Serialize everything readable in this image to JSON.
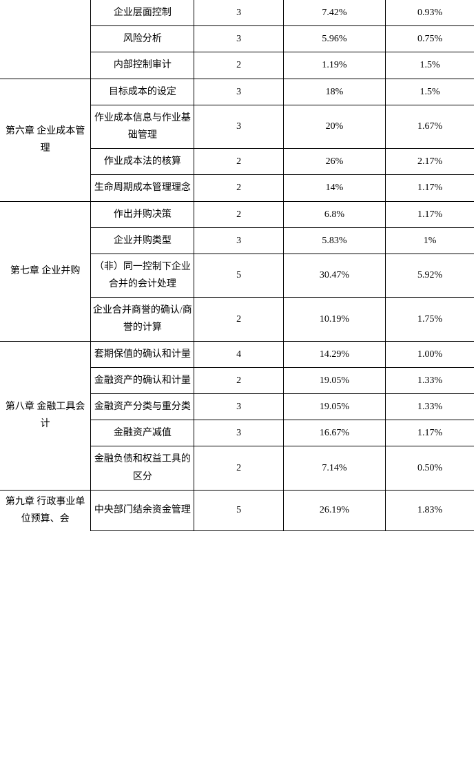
{
  "table": {
    "colors": {
      "border": "#000000",
      "background": "#ffffff",
      "text": "#000000"
    },
    "font_size": 14,
    "sections": [
      {
        "chapter": "",
        "chapter_blank_leading": true,
        "rows": [
          {
            "topic": "企业层面控制",
            "c1": "3",
            "c2": "7.42%",
            "c3": "0.93%"
          },
          {
            "topic": "风险分析",
            "c1": "3",
            "c2": "5.96%",
            "c3": "0.75%"
          },
          {
            "topic": "内部控制审计",
            "c1": "2",
            "c2": "1.19%",
            "c3": "1.5%"
          }
        ]
      },
      {
        "chapter": "第六章 企业成本管理",
        "rows": [
          {
            "topic": "目标成本的设定",
            "c1": "3",
            "c2": "18%",
            "c3": "1.5%"
          },
          {
            "topic": "作业成本信息与作业基础管理",
            "c1": "3",
            "c2": "20%",
            "c3": "1.67%"
          },
          {
            "topic": "作业成本法的核算",
            "c1": "2",
            "c2": "26%",
            "c3": "2.17%"
          },
          {
            "topic": "生命周期成本管理理念",
            "c1": "2",
            "c2": "14%",
            "c3": "1.17%"
          }
        ]
      },
      {
        "chapter": "第七章 企业并购",
        "rows": [
          {
            "topic": "作出并购决策",
            "c1": "2",
            "c2": "6.8%",
            "c3": "1.17%"
          },
          {
            "topic": "企业并购类型",
            "c1": "3",
            "c2": "5.83%",
            "c3": "1%"
          },
          {
            "topic": "（非）同一控制下企业合并的会计处理",
            "c1": "5",
            "c2": "30.47%",
            "c3": "5.92%"
          },
          {
            "topic": "企业合并商誉的确认/商誉的计算",
            "c1": "2",
            "c2": "10.19%",
            "c3": "1.75%"
          }
        ]
      },
      {
        "chapter": "第八章 金融工具会计",
        "rows": [
          {
            "topic": "套期保值的确认和计量",
            "c1": "4",
            "c2": "14.29%",
            "c3": "1.00%"
          },
          {
            "topic": "金融资产的确认和计量",
            "c1": "2",
            "c2": "19.05%",
            "c3": "1.33%"
          },
          {
            "topic": "金融资产分类与重分类",
            "c1": "3",
            "c2": "19.05%",
            "c3": "1.33%"
          },
          {
            "topic": "金融资产减值",
            "c1": "3",
            "c2": "16.67%",
            "c3": "1.17%"
          },
          {
            "topic": "金融负债和权益工具的区分",
            "c1": "2",
            "c2": "7.14%",
            "c3": "0.50%"
          }
        ]
      },
      {
        "chapter": "第九章 行政事业单位预算、会",
        "chapter_partial_bottom": true,
        "rows": [
          {
            "topic": "中央部门结余资金管理",
            "c1": "5",
            "c2": "26.19%",
            "c3": "1.83%"
          }
        ]
      }
    ]
  }
}
